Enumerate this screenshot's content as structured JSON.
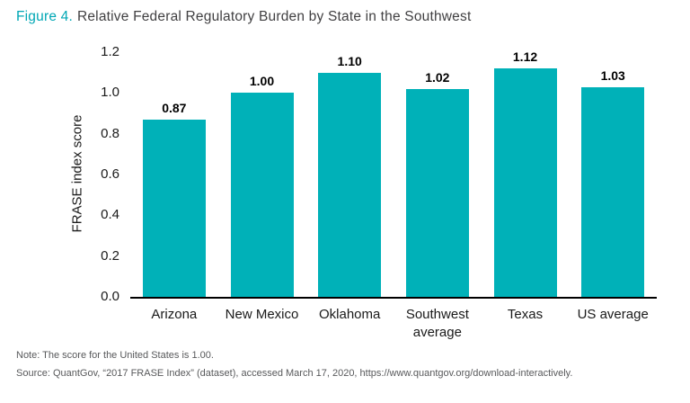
{
  "title": {
    "prefix": "Figure 4.",
    "text": "Relative Federal Regulatory Burden by State in the Southwest"
  },
  "accent_color": "#00a7b5",
  "chart_data": {
    "type": "bar",
    "title": "Relative Federal Regulatory Burden by State in the Southwest",
    "categories": [
      "Arizona",
      "New Mexico",
      "Oklahoma",
      "Southwest average",
      "Texas",
      "US average"
    ],
    "values": [
      0.87,
      1.0,
      1.1,
      1.02,
      1.12,
      1.03
    ],
    "value_labels": [
      "0.87",
      "1.00",
      "1.10",
      "1.02",
      "1.12",
      "1.03"
    ],
    "xlabel": "",
    "ylabel": "FRASE index score",
    "ylim": [
      0,
      1.2
    ],
    "yticks": [
      "0.0",
      "0.2",
      "0.4",
      "0.6",
      "0.8",
      "1.0",
      "1.2"
    ],
    "grid": false,
    "legend": false,
    "bar_color": "#00b1b8"
  },
  "note": "Note: The score for the United States is 1.00.",
  "source": "Source: QuantGov, “2017 FRASE Index” (dataset), accessed March 17, 2020, https://www.quantgov.org/download-interactively."
}
